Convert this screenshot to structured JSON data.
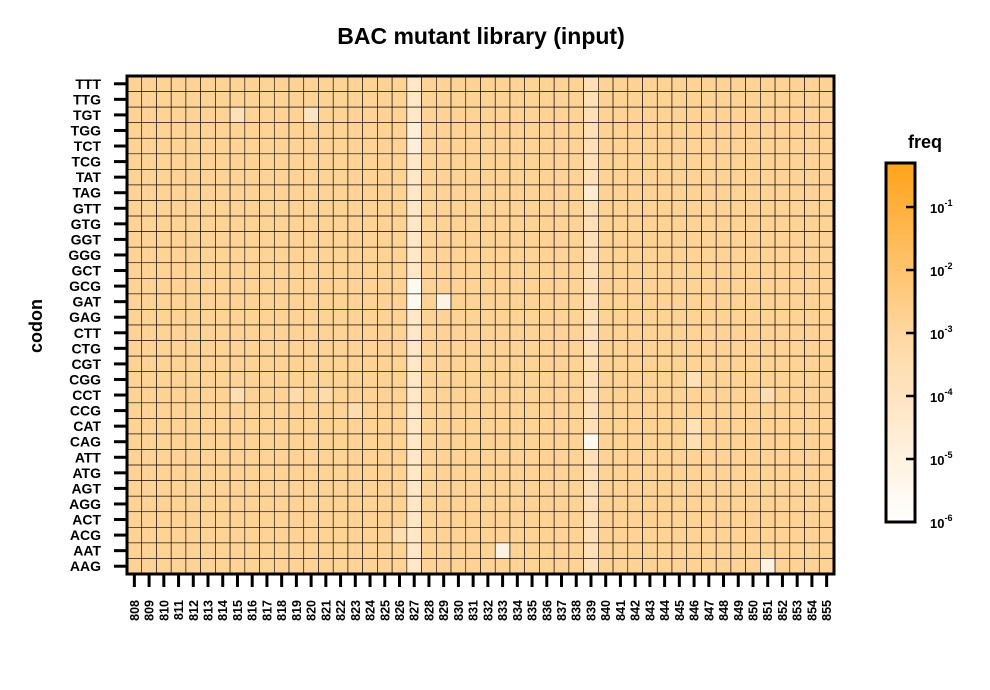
{
  "chart_data": {
    "type": "heatmap",
    "title": "BAC mutant library (input)",
    "xlabel": "",
    "ylabel": "codon",
    "legend_title": "freq",
    "x": [
      "808",
      "809",
      "810",
      "811",
      "812",
      "813",
      "814",
      "815",
      "816",
      "817",
      "818",
      "819",
      "820",
      "821",
      "822",
      "823",
      "824",
      "825",
      "826",
      "827",
      "828",
      "829",
      "830",
      "831",
      "832",
      "833",
      "834",
      "835",
      "836",
      "837",
      "838",
      "839",
      "840",
      "841",
      "842",
      "843",
      "844",
      "845",
      "846",
      "847",
      "848",
      "849",
      "850",
      "851",
      "852",
      "853",
      "854",
      "855"
    ],
    "y": [
      "TTT",
      "TTG",
      "TGT",
      "TGG",
      "TCT",
      "TCG",
      "TAT",
      "TAG",
      "GTT",
      "GTG",
      "GGT",
      "GGG",
      "GCT",
      "GCG",
      "GAT",
      "GAG",
      "CTT",
      "CTG",
      "CGT",
      "CGG",
      "CCT",
      "CCG",
      "CAT",
      "CAG",
      "ATT",
      "ATG",
      "AGT",
      "AGG",
      "ACT",
      "ACG",
      "AAT",
      "AAG"
    ],
    "scale": "log10",
    "value_range": [
      1e-06,
      0.5
    ],
    "colorbar_ticks": [
      {
        "base": "10",
        "exp": "-1",
        "value": 0.1
      },
      {
        "base": "10",
        "exp": "-2",
        "value": 0.01
      },
      {
        "base": "10",
        "exp": "-3",
        "value": 0.001
      },
      {
        "base": "10",
        "exp": "-4",
        "value": 0.0001
      },
      {
        "base": "10",
        "exp": "-5",
        "value": 1e-05
      },
      {
        "base": "10",
        "exp": "-6",
        "value": 1e-06
      }
    ],
    "colors": {
      "low": "#ffffff",
      "mid": "#ffd9a6",
      "high": "#ffa31a",
      "grid": "#000000"
    },
    "typical_value": 0.0015,
    "low_value_columns": [
      {
        "x": "827",
        "value": 6e-05
      },
      {
        "x": "839",
        "value": 0.0002
      }
    ],
    "notable_cells": [
      {
        "x": "827",
        "y": "GCG",
        "value": 3e-06
      },
      {
        "x": "827",
        "y": "GAT",
        "value": 3e-06
      },
      {
        "x": "827",
        "y": "TGG",
        "value": 1.5e-05
      },
      {
        "x": "827",
        "y": "TCT",
        "value": 1.5e-05
      },
      {
        "x": "829",
        "y": "GAT",
        "value": 8e-06
      },
      {
        "x": "839",
        "y": "CAG",
        "value": 3e-06
      },
      {
        "x": "839",
        "y": "TAG",
        "value": 3e-05
      },
      {
        "x": "833",
        "y": "AAT",
        "value": 1e-05
      },
      {
        "x": "851",
        "y": "AAG",
        "value": 1e-05
      },
      {
        "x": "820",
        "y": "TGT",
        "value": 0.0001
      },
      {
        "x": "815",
        "y": "TGT",
        "value": 0.0002
      },
      {
        "x": "815",
        "y": "CCT",
        "value": 0.0003
      },
      {
        "x": "846",
        "y": "CGG",
        "value": 0.0002
      },
      {
        "x": "846",
        "y": "CAT",
        "value": 0.0002
      },
      {
        "x": "846",
        "y": "CAG",
        "value": 0.0003
      },
      {
        "x": "851",
        "y": "CCT",
        "value": 0.0003
      },
      {
        "x": "826",
        "y": "ACG",
        "value": 0.0003
      },
      {
        "x": "823",
        "y": "CCG",
        "value": 0.0004
      },
      {
        "x": "819",
        "y": "CCT",
        "value": 0.0005
      },
      {
        "x": "821",
        "y": "CCT",
        "value": 0.0005
      }
    ]
  }
}
